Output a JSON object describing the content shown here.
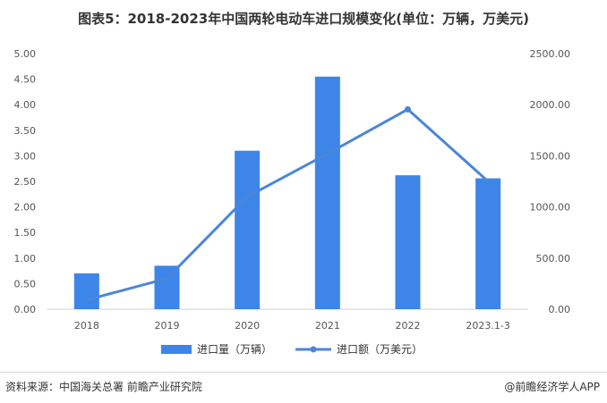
{
  "title": "图表5：2018-2023年中国两轮电动车进口规模变化(单位：万辆，万美元)",
  "chart_data": {
    "type": "bar+line",
    "categories": [
      "2018",
      "2019",
      "2020",
      "2021",
      "2022",
      "2023.1-3"
    ],
    "series": [
      {
        "name": "进口量（万辆）",
        "type": "bar",
        "axis": "left",
        "color": "#3d85e8",
        "values": [
          0.7,
          0.85,
          3.1,
          4.55,
          2.62,
          2.56
        ]
      },
      {
        "name": "进口额（万美元）",
        "type": "line",
        "axis": "right",
        "color": "#4a86d8",
        "values": [
          90,
          300,
          1100,
          1520,
          1955,
          1250
        ]
      }
    ],
    "y_left": {
      "min": 0,
      "max": 5,
      "ticks": [
        "0.00",
        "0.50",
        "1.00",
        "1.50",
        "2.00",
        "2.50",
        "3.00",
        "3.50",
        "4.00",
        "4.50",
        "5.00"
      ]
    },
    "y_right": {
      "min": 0,
      "max": 2500,
      "ticks": [
        "0.00",
        "500.00",
        "1000.00",
        "1500.00",
        "2000.00",
        "2500.00"
      ]
    },
    "grid": false,
    "legend": "bottom"
  },
  "footer": {
    "source": "资料来源：中国海关总署 前瞻产业研究院",
    "brand": "@前瞻经济学人APP"
  }
}
